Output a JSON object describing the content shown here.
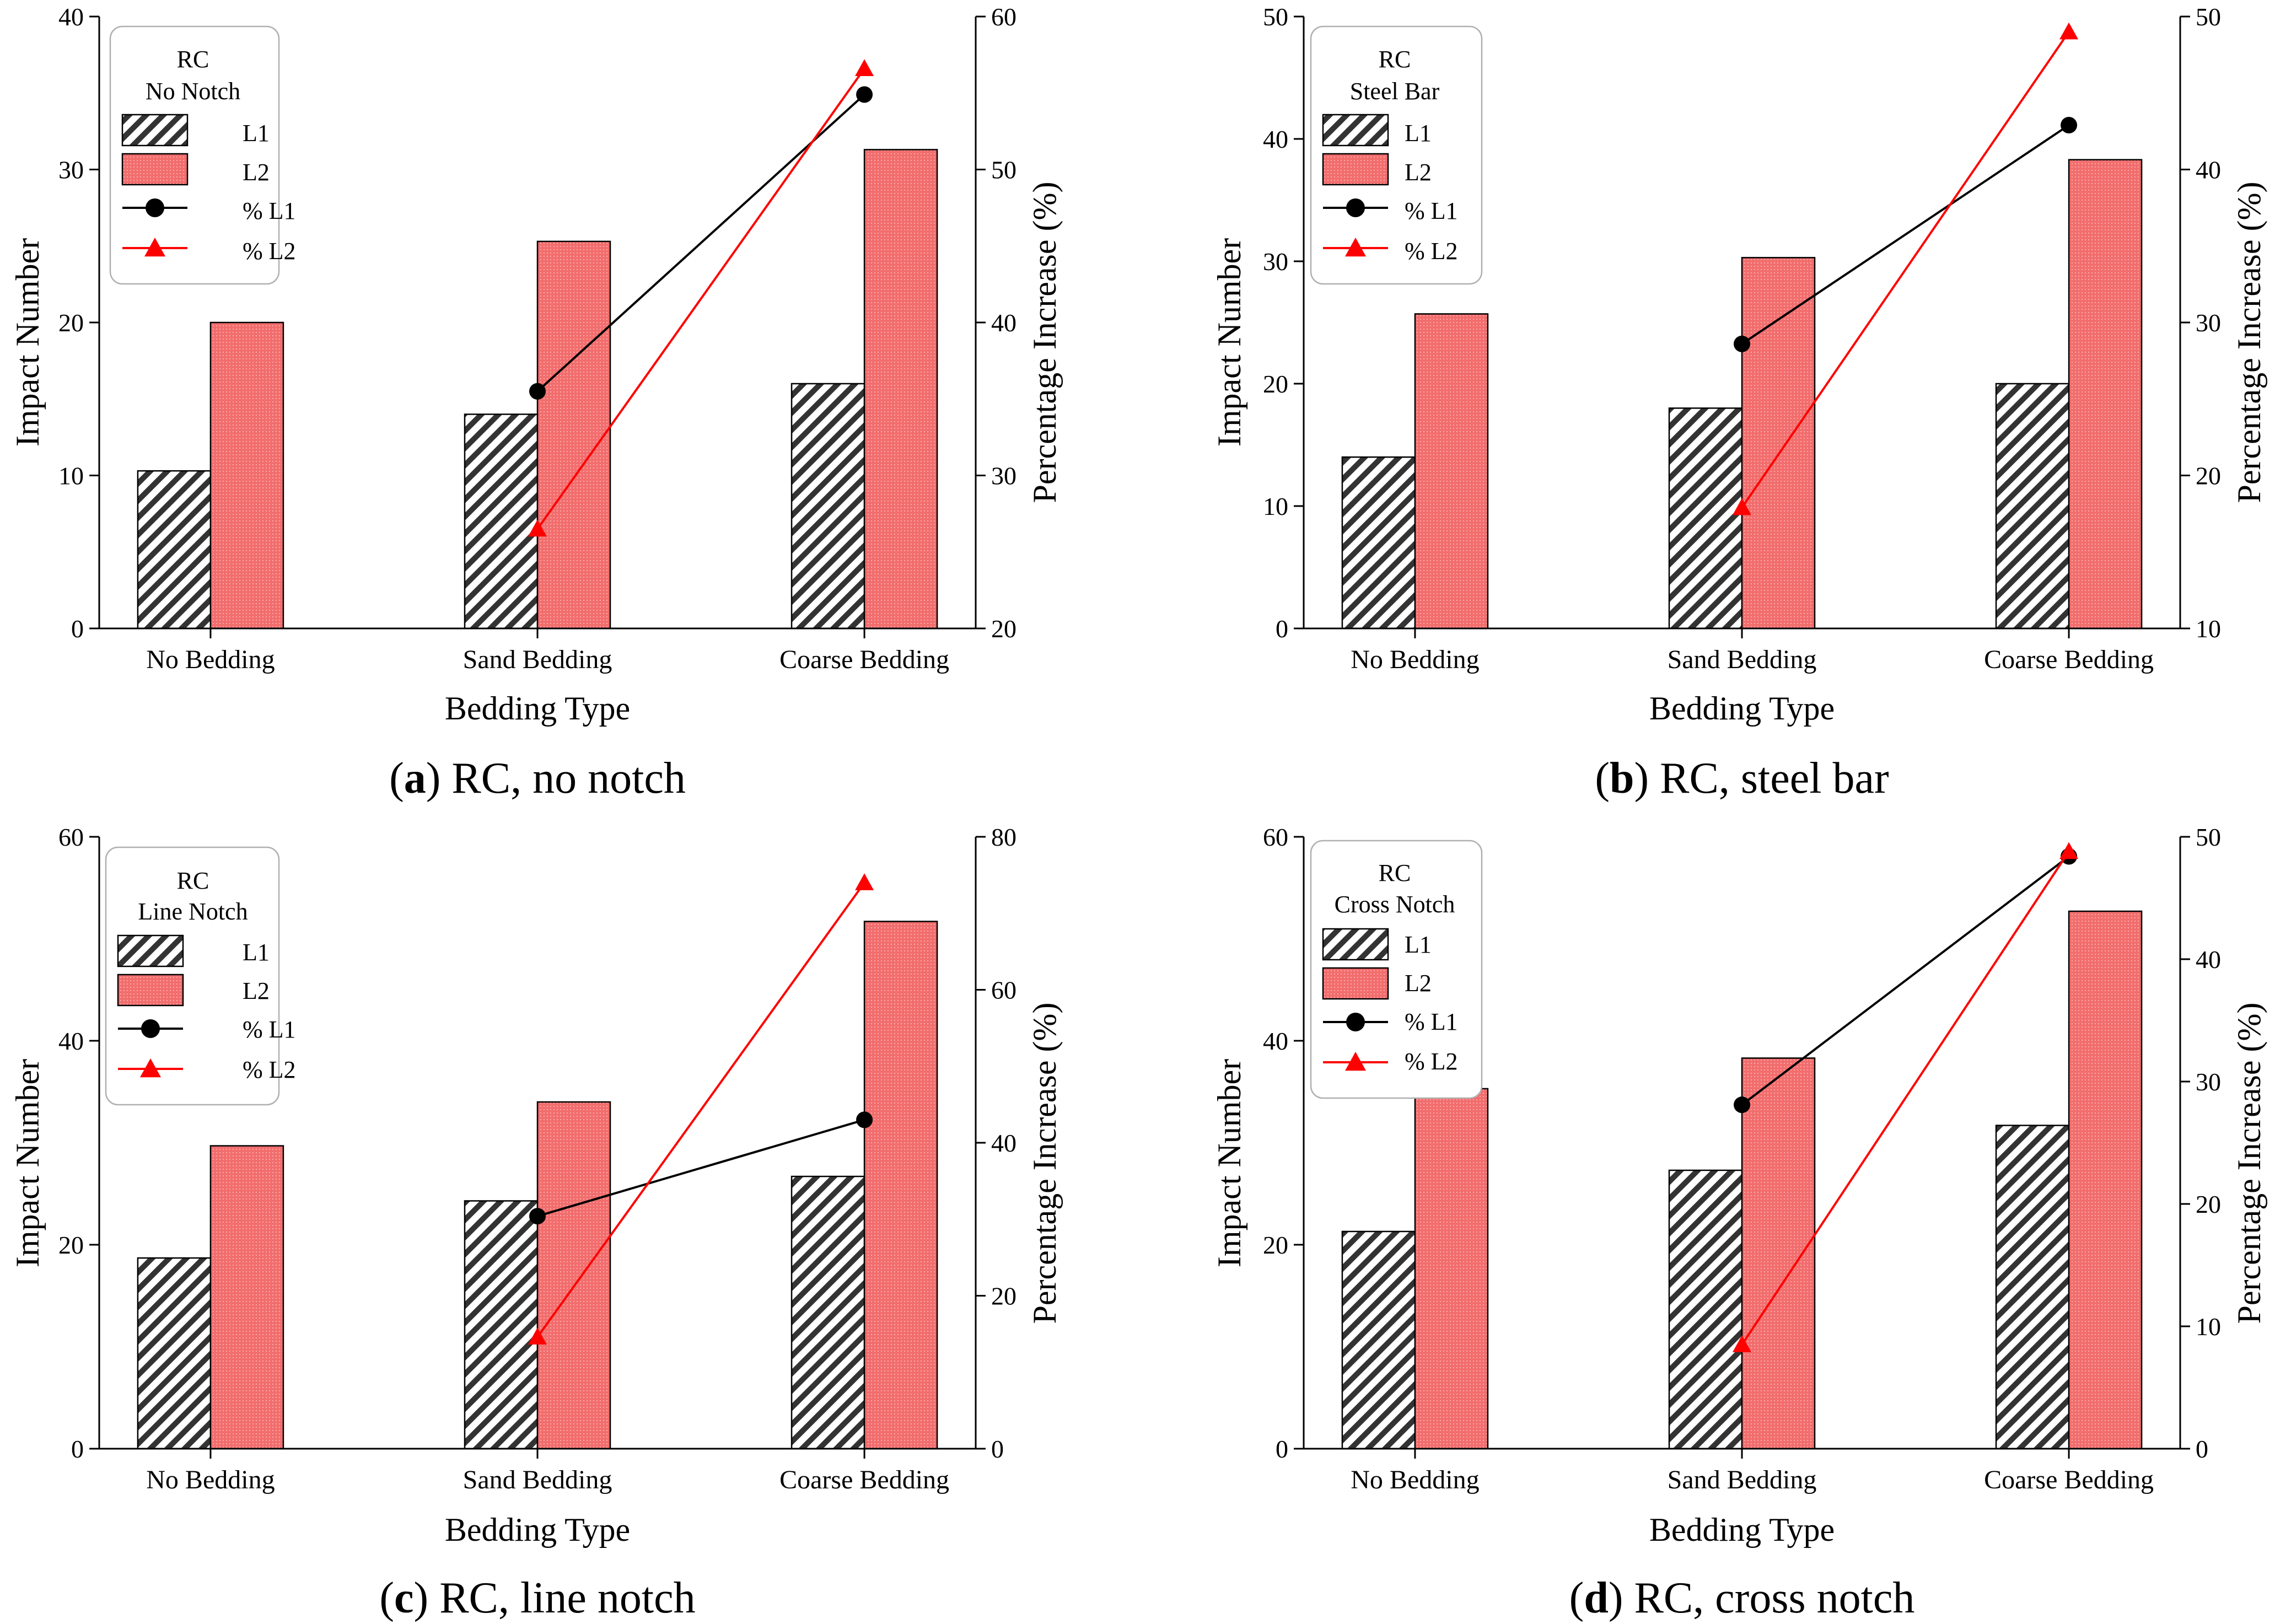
{
  "colors": {
    "l1_hatch": "#333333",
    "l2_fill": "#f26d6d",
    "pct_l1": "#000000",
    "pct_l2": "#ff0000",
    "axis": "#000000"
  },
  "icons": {
    "pct_l1_marker": "filled-circle",
    "pct_l2_marker": "filled-triangle"
  },
  "chart_data": [
    {
      "type": "bar+line",
      "caption_letter": "a",
      "caption_text": ") RC, no notch",
      "legend": [
        "RC",
        "No Notch"
      ],
      "legend_entries": [
        "L1",
        "L2",
        "% L1",
        "% L2"
      ],
      "categories": [
        "No Bedding",
        "Sand Bedding",
        "Coarse Bedding"
      ],
      "xlabel": "Bedding Type",
      "ylabel": "Impact Number",
      "y2label": "Percentage Increase (%)",
      "ylim": [
        0,
        40
      ],
      "yticks": [
        0,
        10,
        20,
        30,
        40
      ],
      "y2lim": [
        20,
        60
      ],
      "y2ticks": [
        20,
        30,
        40,
        50,
        60
      ],
      "series": [
        {
          "name": "L1",
          "kind": "bar",
          "values": [
            10.3,
            14.0,
            16.0
          ]
        },
        {
          "name": "L2",
          "kind": "bar",
          "values": [
            20.0,
            25.3,
            31.3
          ]
        },
        {
          "name": "% L1",
          "kind": "line",
          "axis": "right",
          "values": [
            null,
            35.5,
            54.9
          ]
        },
        {
          "name": "% L2",
          "kind": "line",
          "axis": "right",
          "values": [
            null,
            26.5,
            56.6
          ]
        }
      ]
    },
    {
      "type": "bar+line",
      "caption_letter": "b",
      "caption_text": ") RC, steel bar",
      "legend": [
        "RC",
        "Steel Bar"
      ],
      "legend_entries": [
        "L1",
        "L2",
        "% L1",
        "% L2"
      ],
      "categories": [
        "No Bedding",
        "Sand Bedding",
        "Coarse Bedding"
      ],
      "xlabel": "Bedding Type",
      "ylabel": "Impact Number",
      "y2label": "Percentage Increase (%)",
      "ylim": [
        0,
        50
      ],
      "yticks": [
        0,
        10,
        20,
        30,
        40,
        50
      ],
      "y2lim": [
        10,
        50
      ],
      "y2ticks": [
        10,
        20,
        30,
        40,
        50
      ],
      "series": [
        {
          "name": "L1",
          "kind": "bar",
          "values": [
            14.0,
            18.0,
            20.0
          ]
        },
        {
          "name": "L2",
          "kind": "bar",
          "values": [
            25.7,
            30.3,
            38.3
          ]
        },
        {
          "name": "% L1",
          "kind": "line",
          "axis": "right",
          "values": [
            null,
            28.6,
            42.9
          ]
        },
        {
          "name": "% L2",
          "kind": "line",
          "axis": "right",
          "values": [
            null,
            17.9,
            49.0
          ]
        }
      ]
    },
    {
      "type": "bar+line",
      "caption_letter": "c",
      "caption_text": ") RC, line notch",
      "legend": [
        "RC",
        "Line Notch"
      ],
      "legend_entries": [
        "L1",
        "L2",
        "% L1",
        "% L2"
      ],
      "categories": [
        "No Bedding",
        "Sand Bedding",
        "Coarse Bedding"
      ],
      "xlabel": "Bedding Type",
      "ylabel": "Impact Number",
      "y2label": "Percentage Increase (%)",
      "ylim": [
        0,
        60
      ],
      "yticks": [
        0,
        20,
        40,
        60
      ],
      "y2lim": [
        0,
        80
      ],
      "y2ticks": [
        0,
        20,
        40,
        60,
        80
      ],
      "series": [
        {
          "name": "L1",
          "kind": "bar",
          "values": [
            18.7,
            24.3,
            26.7
          ]
        },
        {
          "name": "L2",
          "kind": "bar",
          "values": [
            29.7,
            34.0,
            51.7
          ]
        },
        {
          "name": "% L1",
          "kind": "line",
          "axis": "right",
          "values": [
            null,
            30.4,
            43.0
          ]
        },
        {
          "name": "% L2",
          "kind": "line",
          "axis": "right",
          "values": [
            null,
            14.6,
            74.0
          ]
        }
      ]
    },
    {
      "type": "bar+line",
      "caption_letter": "d",
      "caption_text": ") RC, cross notch",
      "legend": [
        "RC",
        "Cross Notch"
      ],
      "legend_entries": [
        "L1",
        "L2",
        "% L1",
        "% L2"
      ],
      "categories": [
        "No Bedding",
        "Sand Bedding",
        "Coarse Bedding"
      ],
      "xlabel": "Bedding Type",
      "ylabel": "Impact Number",
      "y2label": "Percentage Increase (%)",
      "ylim": [
        0,
        60
      ],
      "yticks": [
        0,
        20,
        40,
        60
      ],
      "y2lim": [
        0,
        50
      ],
      "y2ticks": [
        0,
        10,
        20,
        30,
        40,
        50
      ],
      "series": [
        {
          "name": "L1",
          "kind": "bar",
          "values": [
            21.3,
            27.3,
            31.7
          ]
        },
        {
          "name": "L2",
          "kind": "bar",
          "values": [
            35.3,
            38.3,
            52.7
          ]
        },
        {
          "name": "% L1",
          "kind": "line",
          "axis": "right",
          "values": [
            null,
            28.1,
            48.4
          ]
        },
        {
          "name": "% L2",
          "kind": "line",
          "axis": "right",
          "values": [
            null,
            8.5,
            48.8
          ]
        }
      ]
    }
  ]
}
